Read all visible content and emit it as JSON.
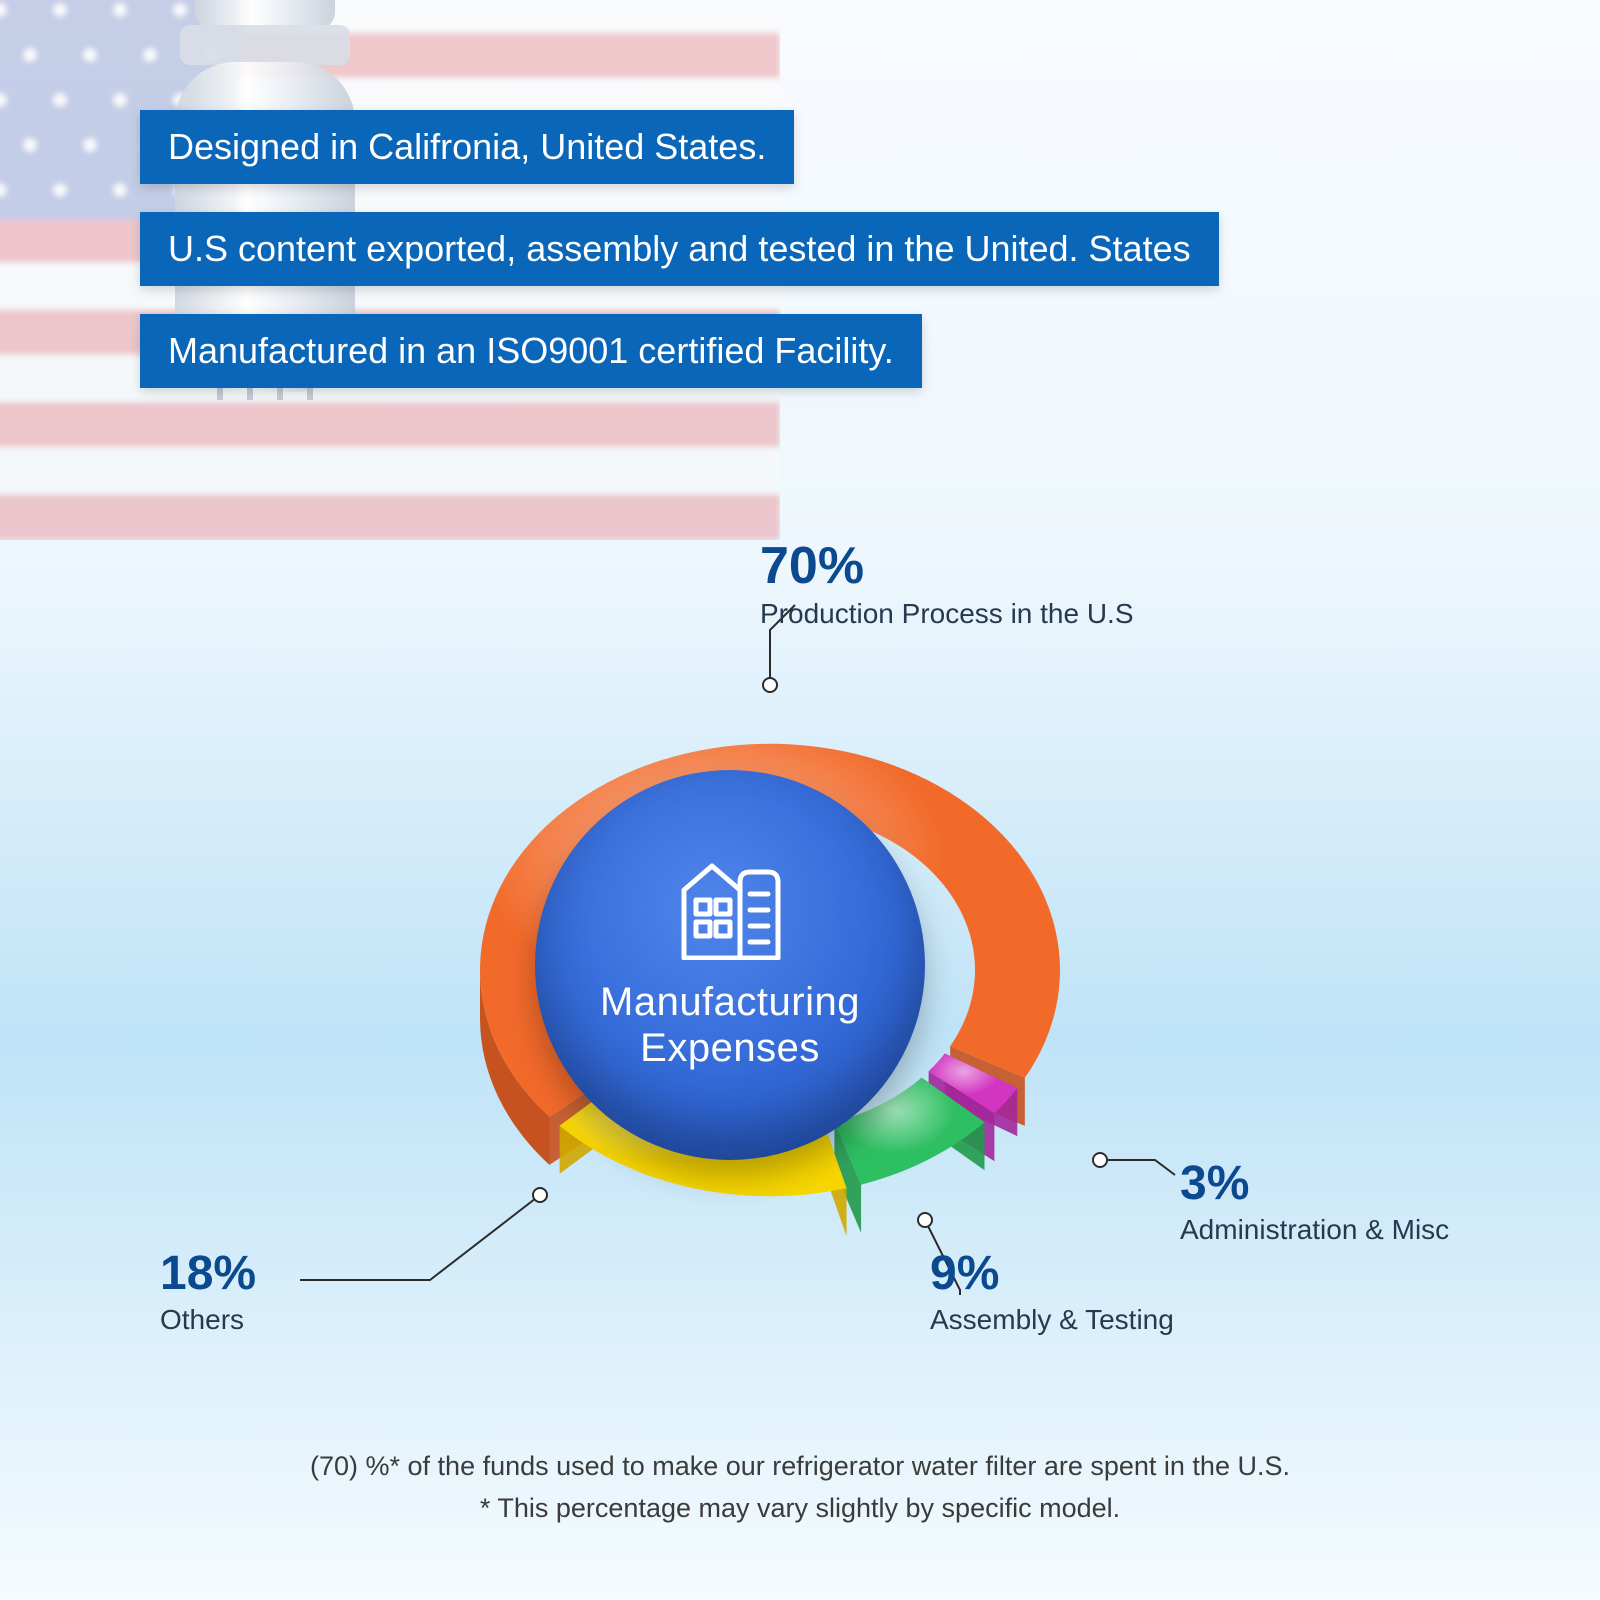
{
  "banners": {
    "bg_color": "#0a66b8",
    "text_color": "#ffffff",
    "fontsize": 36,
    "items": [
      "Designed in Califronia, United States.",
      "U.S content exported, assembly and tested in the United. States",
      "Manufactured in an ISO9001 certified Facility."
    ]
  },
  "chart": {
    "type": "donut-3d",
    "center_title": "Manufacturing\nExpenses",
    "center_bg": "#3268d6",
    "center_text_color": "#ffffff",
    "center_fontsize": 40,
    "label_color": "#0b4a8f",
    "desc_color": "#263a4f",
    "pct_fontsize": 52,
    "desc_fontsize": 28,
    "ring_outer_r": 290,
    "ring_inner_r": 205,
    "slices": [
      {
        "key": "production",
        "pct": 70,
        "label": "Production Process in the U.S",
        "color": "#f26a2a",
        "highlight": "#ff8a4a",
        "shadow": "#c6521f"
      },
      {
        "key": "admin",
        "pct": 3,
        "label": "Administration & Misc",
        "color": "#d235c2",
        "highlight": "#ee5ade",
        "shadow": "#a3279a"
      },
      {
        "key": "assembly",
        "pct": 9,
        "label": "Assembly & Testing",
        "color": "#2fbf63",
        "highlight": "#55d884",
        "shadow": "#1f9a4a"
      },
      {
        "key": "others",
        "pct": 18,
        "label": "Others",
        "color": "#f7d600",
        "highlight": "#ffe950",
        "shadow": "#cfa800"
      }
    ],
    "leader_stroke": "#2b2b2b",
    "marker_fill": "#ffffff",
    "marker_stroke": "#2b2b2b"
  },
  "footnotes": {
    "line1": "(70) %* of the funds used to make our refrigerator water filter are spent in the U.S.",
    "line2": "* This percentage may vary slightly by specific model.",
    "color": "#3b3b3b",
    "fontsize": 27
  },
  "flag": {
    "stripe_red": "#e36b6f",
    "stripe_white": "#fdfafa",
    "canton": "#6b7bbf",
    "star": "#ffffff"
  }
}
